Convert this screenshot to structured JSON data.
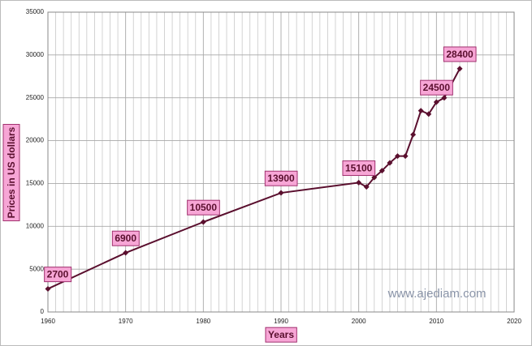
{
  "chart_data": {
    "type": "line",
    "x_title": "Years",
    "y_title": "Prices in US dollars",
    "watermark": "www.ajediam.com",
    "x": [
      1960,
      1970,
      1980,
      1990,
      2000,
      2001,
      2002,
      2003,
      2004,
      2005,
      2006,
      2007,
      2008,
      2009,
      2010,
      2011,
      2013
    ],
    "series": [
      {
        "color": "#5a0f2e",
        "values": [
          2700,
          6900,
          10500,
          13900,
          15100,
          14600,
          15700,
          16500,
          17400,
          18200,
          18200,
          20700,
          23500,
          23100,
          24500,
          25000,
          28400
        ],
        "value_labels": [
          "2700",
          "6900",
          "10500",
          "13900",
          "15100",
          null,
          null,
          null,
          null,
          null,
          null,
          null,
          null,
          null,
          "24500",
          null,
          "28400"
        ]
      }
    ],
    "xlim": [
      1960,
      2020
    ],
    "ylim": [
      0,
      35000
    ],
    "xticks": [
      1960,
      1970,
      1980,
      1990,
      2000,
      2010,
      2020
    ],
    "yticks": [
      0,
      5000,
      10000,
      15000,
      20000,
      25000,
      30000,
      35000
    ],
    "xminorticks": [
      1961,
      1962,
      1963,
      1964,
      1965,
      1966,
      1967,
      1968,
      1969,
      1971,
      1972,
      1973,
      1974,
      1975,
      1976,
      1977,
      1978,
      1979,
      1981,
      1982,
      1983,
      1984,
      1985,
      1986,
      1987,
      1988,
      1989,
      1991,
      1992,
      1993,
      1994,
      1995,
      1996,
      1997,
      1998,
      1999,
      2001,
      2002,
      2003,
      2004,
      2005,
      2006,
      2007,
      2008,
      2009,
      2011,
      2012,
      2013,
      2014,
      2015,
      2016,
      2017,
      2018,
      2019
    ],
    "grid": true
  }
}
